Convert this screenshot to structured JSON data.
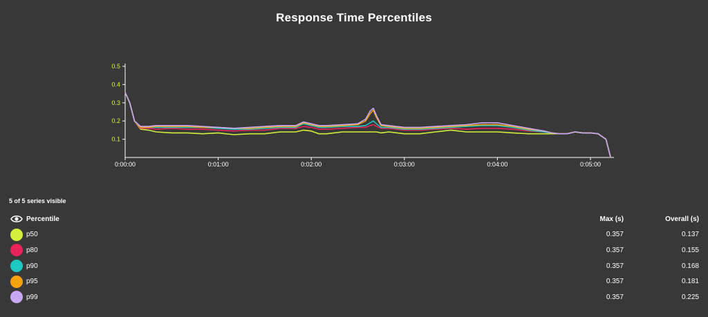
{
  "chart_data": {
    "type": "line",
    "title": "Response Time Percentiles",
    "xlabel": "",
    "ylabel": "",
    "x_ticks": [
      "0:00:00",
      "0:01:00",
      "0:02:00",
      "0:03:00",
      "0:04:00",
      "0:05:00"
    ],
    "y_ticks": [
      "0.1",
      "0.2",
      "0.3",
      "0.4",
      "0.5"
    ],
    "xlim_seconds": [
      0,
      315
    ],
    "ylim": [
      0,
      0.5
    ],
    "grid": false,
    "x_seconds": [
      0,
      3,
      6,
      10,
      15,
      20,
      30,
      40,
      50,
      60,
      70,
      80,
      90,
      100,
      110,
      115,
      120,
      125,
      130,
      140,
      150,
      155,
      158,
      160,
      162,
      165,
      170,
      180,
      190,
      200,
      210,
      220,
      230,
      240,
      250,
      260,
      270,
      275,
      280,
      285,
      290,
      295,
      300,
      305,
      310,
      313
    ],
    "series": [
      {
        "name": "p50",
        "color": "#d4f03c",
        "values": [
          0.357,
          0.3,
          0.2,
          0.155,
          0.15,
          0.14,
          0.135,
          0.135,
          0.13,
          0.135,
          0.125,
          0.13,
          0.13,
          0.14,
          0.14,
          0.15,
          0.145,
          0.13,
          0.13,
          0.14,
          0.14,
          0.14,
          0.14,
          0.14,
          0.14,
          0.135,
          0.14,
          0.13,
          0.13,
          0.14,
          0.15,
          0.14,
          0.14,
          0.14,
          0.135,
          0.13,
          0.13,
          0.13,
          0.13,
          0.13,
          0.14,
          0.135,
          0.135,
          0.13,
          0.1,
          0.0
        ]
      },
      {
        "name": "p80",
        "color": "#e8245b",
        "values": [
          0.357,
          0.3,
          0.2,
          0.16,
          0.16,
          0.155,
          0.16,
          0.155,
          0.155,
          0.15,
          0.145,
          0.15,
          0.15,
          0.16,
          0.16,
          0.17,
          0.165,
          0.155,
          0.155,
          0.16,
          0.165,
          0.165,
          0.175,
          0.18,
          0.17,
          0.16,
          0.16,
          0.15,
          0.15,
          0.155,
          0.16,
          0.155,
          0.16,
          0.16,
          0.155,
          0.145,
          0.14,
          0.135,
          0.13,
          0.13,
          0.14,
          0.135,
          0.135,
          0.13,
          0.1,
          0.0
        ]
      },
      {
        "name": "p90",
        "color": "#1ec9c4",
        "values": [
          0.357,
          0.3,
          0.2,
          0.165,
          0.165,
          0.165,
          0.165,
          0.165,
          0.165,
          0.16,
          0.155,
          0.155,
          0.16,
          0.165,
          0.165,
          0.185,
          0.175,
          0.165,
          0.165,
          0.17,
          0.17,
          0.175,
          0.19,
          0.2,
          0.185,
          0.165,
          0.165,
          0.155,
          0.155,
          0.16,
          0.165,
          0.17,
          0.175,
          0.175,
          0.165,
          0.15,
          0.14,
          0.135,
          0.13,
          0.13,
          0.14,
          0.135,
          0.135,
          0.13,
          0.1,
          0.0
        ]
      },
      {
        "name": "p95",
        "color": "#f5a20e",
        "values": [
          0.357,
          0.3,
          0.2,
          0.165,
          0.165,
          0.17,
          0.17,
          0.17,
          0.165,
          0.165,
          0.16,
          0.16,
          0.165,
          0.17,
          0.17,
          0.19,
          0.18,
          0.17,
          0.17,
          0.175,
          0.18,
          0.2,
          0.24,
          0.26,
          0.22,
          0.175,
          0.17,
          0.16,
          0.16,
          0.165,
          0.17,
          0.175,
          0.18,
          0.18,
          0.17,
          0.155,
          0.145,
          0.135,
          0.13,
          0.13,
          0.14,
          0.135,
          0.135,
          0.13,
          0.1,
          0.0
        ]
      },
      {
        "name": "p99",
        "color": "#c8a8f5",
        "values": [
          0.357,
          0.3,
          0.2,
          0.17,
          0.17,
          0.175,
          0.175,
          0.175,
          0.17,
          0.165,
          0.16,
          0.165,
          0.17,
          0.175,
          0.175,
          0.195,
          0.185,
          0.175,
          0.175,
          0.18,
          0.185,
          0.21,
          0.255,
          0.27,
          0.23,
          0.18,
          0.175,
          0.165,
          0.165,
          0.17,
          0.175,
          0.18,
          0.19,
          0.19,
          0.175,
          0.16,
          0.145,
          0.135,
          0.13,
          0.13,
          0.14,
          0.135,
          0.135,
          0.13,
          0.1,
          0.0
        ]
      }
    ]
  },
  "legend": {
    "visible_count": "5 of 5 series visible",
    "header_name": "Percentile",
    "header_max": "Max (s)",
    "header_overall": "Overall (s)",
    "rows": [
      {
        "name": "p50",
        "color": "#d4f03c",
        "max": "0.357",
        "overall": "0.137"
      },
      {
        "name": "p80",
        "color": "#e8245b",
        "max": "0.357",
        "overall": "0.155"
      },
      {
        "name": "p90",
        "color": "#1ec9c4",
        "max": "0.357",
        "overall": "0.168"
      },
      {
        "name": "p95",
        "color": "#f5a20e",
        "max": "0.357",
        "overall": "0.181"
      },
      {
        "name": "p99",
        "color": "#c8a8f5",
        "max": "0.357",
        "overall": "0.225"
      }
    ]
  },
  "colors": {
    "background": "#383838",
    "axis": "#ffffff",
    "y_tick_text": "#d9f23f"
  }
}
